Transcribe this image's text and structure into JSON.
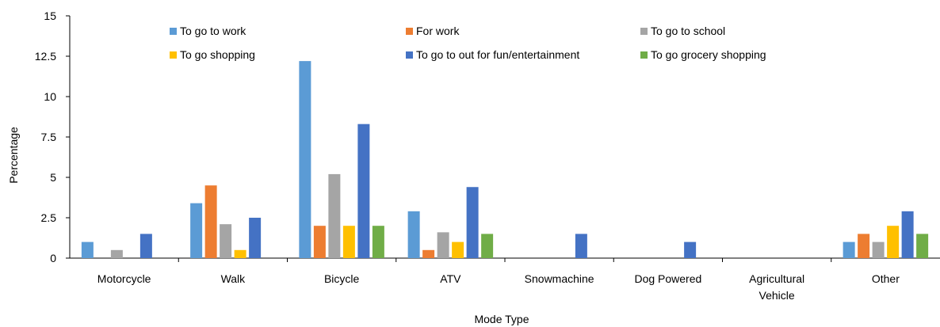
{
  "chart_data": {
    "type": "bar",
    "title": "",
    "xlabel": "Mode Type",
    "ylabel": "Percentage",
    "ylim": [
      0,
      15
    ],
    "yticks": [
      "0",
      "2.5",
      "5",
      "7.5",
      "10",
      "12.5",
      "15"
    ],
    "grid": false,
    "legend_position": "top",
    "categories": [
      [
        "Motorcycle"
      ],
      [
        "Walk"
      ],
      [
        "Bicycle"
      ],
      [
        "ATV"
      ],
      [
        "Snowmachine"
      ],
      [
        "Dog Powered"
      ],
      [
        "Agricultural",
        "Vehicle"
      ],
      [
        "Other"
      ]
    ],
    "series": [
      {
        "name": "To go to work",
        "color": "#5B9BD5",
        "values": [
          1.0,
          3.4,
          12.2,
          2.9,
          0,
          0,
          0,
          1.0
        ]
      },
      {
        "name": "For work",
        "color": "#ED7D31",
        "values": [
          0,
          4.5,
          2.0,
          0.5,
          0,
          0,
          0,
          1.5
        ]
      },
      {
        "name": "To go to school",
        "color": "#A5A5A5",
        "values": [
          0.5,
          2.1,
          5.2,
          1.6,
          0,
          0,
          0,
          1.0
        ]
      },
      {
        "name": "To go shopping",
        "color": "#FFC000",
        "values": [
          0,
          0.5,
          2.0,
          1.0,
          0,
          0,
          0,
          2.0
        ]
      },
      {
        "name": "To go to out for fun/entertainment",
        "color": "#4472C4",
        "values": [
          1.5,
          2.5,
          8.3,
          4.4,
          1.5,
          1.0,
          0,
          2.9
        ]
      },
      {
        "name": "To go grocery shopping",
        "color": "#70AD47",
        "values": [
          0,
          0,
          2.0,
          1.5,
          0,
          0,
          0,
          1.5
        ]
      }
    ]
  }
}
